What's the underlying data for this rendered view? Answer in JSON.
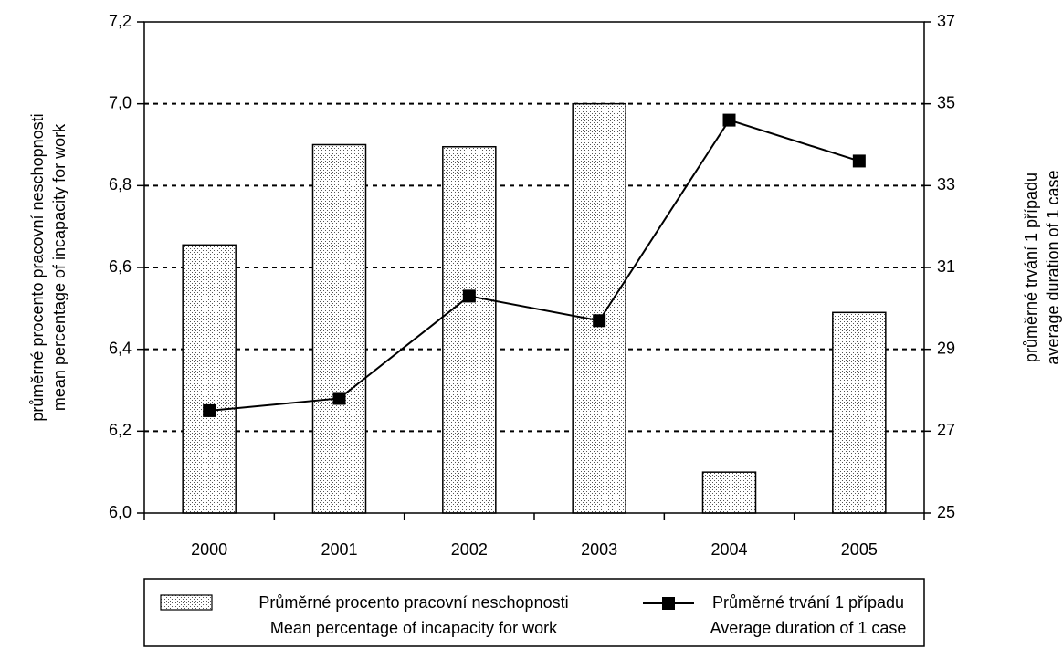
{
  "chart_data": {
    "type": "bar_line",
    "categories": [
      "2000",
      "2001",
      "2002",
      "2003",
      "2004",
      "2005"
    ],
    "series": [
      {
        "name": "Průměrné procento pracovní neschopnosti",
        "name_en": "Mean percentage of incapacity for work",
        "type": "bar",
        "color": "#c8c8c8",
        "values": [
          6.655,
          6.9,
          6.895,
          7.0,
          6.1,
          6.49
        ]
      },
      {
        "name": "Průměrné trvání 1 případu",
        "name_en": "Average duration of 1 case",
        "type": "line",
        "axis": "y2",
        "color": "#000000",
        "values": [
          27.5,
          27.8,
          30.3,
          29.7,
          34.6,
          33.6
        ]
      }
    ],
    "ylabel": [
      "průměrné procento pracovní neschopnosti",
      "mean percentage of incapacity for work"
    ],
    "y2label": [
      "průměrné trvání 1 případu",
      "average duration of 1 case"
    ],
    "ylim": [
      6.0,
      7.2
    ],
    "yticks": [
      {
        "value": 6.0,
        "label": "6,0"
      },
      {
        "value": 6.2,
        "label": "6,2"
      },
      {
        "value": 6.4,
        "label": "6,4"
      },
      {
        "value": 6.6,
        "label": "6,6"
      },
      {
        "value": 6.8,
        "label": "6,8"
      },
      {
        "value": 7.0,
        "label": "7,0"
      },
      {
        "value": 7.2,
        "label": "7,2"
      }
    ],
    "y2lim": [
      25,
      37
    ],
    "y2ticks": [
      25,
      27,
      29,
      31,
      33,
      35,
      37
    ],
    "grid": true
  }
}
